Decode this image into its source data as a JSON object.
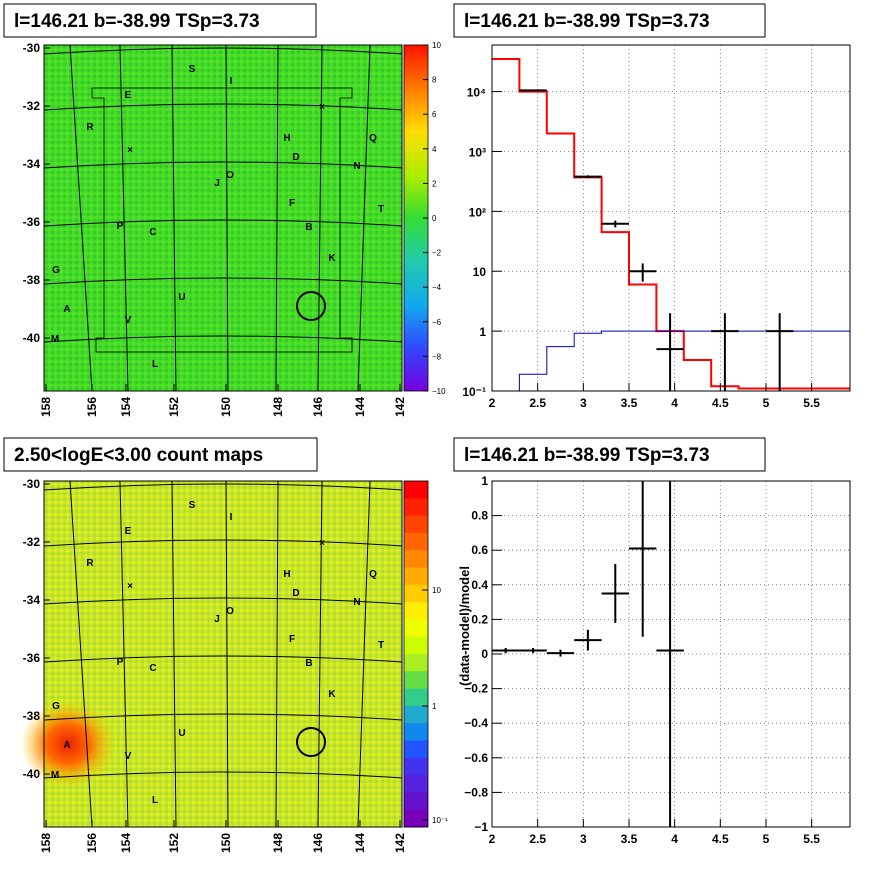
{
  "panels": {
    "tl_title": "l=146.21 b=-38.99 TSp=3.73",
    "tr_title": "l=146.21 b=-38.99 TSp=3.73",
    "bl_title": "2.50<logE<3.00 count maps",
    "br_title": "l=146.21 b=-38.99 TSp=3.73",
    "br_ylabel": "(data-model)/model"
  },
  "colors": {
    "model_red": "#ff0000",
    "model_blue": "#0000cc",
    "data_black": "#000000",
    "tl_map_base": "#44dd22",
    "bl_map_base": "#ccee22",
    "bl_map_hot": "#ff3300"
  },
  "maps": {
    "x_ticks": [
      "158",
      "156",
      "154",
      "152",
      "150",
      "148",
      "146",
      "144",
      "142"
    ],
    "y_ticks": [
      "-30",
      "-32",
      "-34",
      "-36",
      "-38",
      "-40"
    ],
    "tl_colorbar_ticks": [
      "10",
      "8",
      "6",
      "4",
      "2",
      "0",
      "−2",
      "−4",
      "−6",
      "−8",
      "−10"
    ],
    "bl_colorbar_ticks": [
      "10",
      "1",
      "10⁻¹"
    ],
    "sources": [
      "S",
      "I",
      "E",
      "R",
      "H",
      "Q",
      "D",
      "N",
      "O",
      "J",
      "F",
      "T",
      "P",
      "C",
      "B",
      "K",
      "G",
      "U",
      "A",
      "V",
      "M",
      "L"
    ],
    "markers": [
      "×",
      "×"
    ]
  },
  "chart_data": [
    {
      "type": "line",
      "title": "l=146.21 b=-38.99 TSp=3.73",
      "xlabel": "",
      "ylabel": "",
      "xlim": [
        2,
        5.92
      ],
      "ylim": [
        0.1,
        60000
      ],
      "log_y": true,
      "grid": true,
      "x_ticks": [
        "2",
        "2.5",
        "3",
        "3.5",
        "4",
        "4.5",
        "5",
        "5.5"
      ],
      "y_ticks": [
        "10⁻¹",
        "1",
        "10",
        "10²",
        "10³",
        "10⁴"
      ],
      "series": [
        {
          "style": "step-red",
          "bin_edges": [
            2.0,
            2.3,
            2.6,
            2.9,
            3.2,
            3.5,
            3.8,
            4.1,
            4.4,
            4.7,
            5.0,
            5.3,
            5.6,
            5.92
          ],
          "values": [
            35000,
            10000,
            2000,
            370,
            45,
            6,
            1.0,
            0.33,
            0.12,
            0.11,
            0.11,
            0.11,
            0.11
          ]
        },
        {
          "style": "step-blue",
          "bin_edges": [
            2.0,
            2.3,
            2.6,
            2.9,
            3.2,
            3.5,
            3.8,
            4.1,
            4.4,
            4.7,
            5.0,
            5.3,
            5.6,
            5.92
          ],
          "values": [
            0.05,
            0.19,
            0.55,
            0.92,
            1.0,
            1.0,
            1.0,
            1.0,
            1.0,
            1.0,
            1.0,
            1.0,
            1.0
          ]
        },
        {
          "style": "points-black",
          "points": [
            {
              "x": 2.45,
              "xerr": 0.15,
              "y": 10500,
              "ylo": 10300,
              "yhi": 10700
            },
            {
              "x": 3.05,
              "xerr": 0.15,
              "y": 380,
              "ylo": 360,
              "yhi": 400
            },
            {
              "x": 3.35,
              "xerr": 0.15,
              "y": 62,
              "ylo": 54,
              "yhi": 70
            },
            {
              "x": 3.65,
              "xerr": 0.15,
              "y": 10,
              "ylo": 6.7,
              "yhi": 13.5
            },
            {
              "x": 3.95,
              "xerr": 0.15,
              "y": 0.5,
              "ylo": 0.1,
              "yhi": 2.0
            },
            {
              "x": 4.55,
              "xerr": 0.15,
              "y": 1.0,
              "ylo": 0.1,
              "yhi": 2.0
            },
            {
              "x": 5.15,
              "xerr": 0.15,
              "y": 1.0,
              "ylo": 0.1,
              "yhi": 2.0
            }
          ]
        }
      ]
    },
    {
      "type": "scatter",
      "title": "l=146.21 b=-38.99 TSp=3.73",
      "xlabel": "",
      "ylabel": "(data-model)/model",
      "xlim": [
        2,
        5.92
      ],
      "ylim": [
        -1,
        1
      ],
      "grid": true,
      "x_ticks": [
        "2",
        "2.5",
        "3",
        "3.5",
        "4",
        "4.5",
        "5",
        "5.5"
      ],
      "y_ticks": [
        "−1",
        "−0.8",
        "−0.6",
        "−0.4",
        "−0.2",
        "0",
        "0.2",
        "0.4",
        "0.6",
        "0.8",
        "1"
      ],
      "points": [
        {
          "x": 2.15,
          "xerr": 0.15,
          "y": 0.02,
          "yerr": 0.015
        },
        {
          "x": 2.45,
          "xerr": 0.15,
          "y": 0.02,
          "yerr": 0.015
        },
        {
          "x": 2.75,
          "xerr": 0.15,
          "y": 0.005,
          "yerr": 0.02
        },
        {
          "x": 3.05,
          "xerr": 0.15,
          "y": 0.08,
          "yerr": 0.06
        },
        {
          "x": 3.35,
          "xerr": 0.15,
          "y": 0.35,
          "yerr": 0.17
        },
        {
          "x": 3.65,
          "xerr": 0.15,
          "y": 0.61,
          "yerr": 0.51
        },
        {
          "x": 3.95,
          "xerr": 0.15,
          "y": 0.02,
          "yerr": 1.5
        }
      ]
    }
  ]
}
